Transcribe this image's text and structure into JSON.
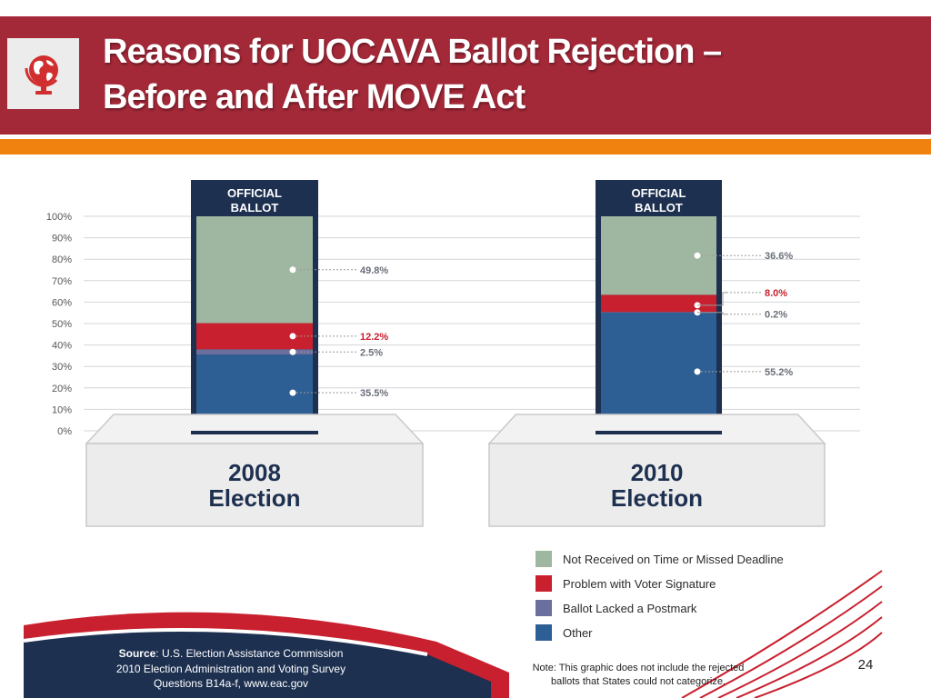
{
  "header": {
    "title_line1": "Reasons for UOCAVA Ballot Rejection –",
    "title_line2": "Before and After MOVE Act",
    "logo_icon": "globe-icon"
  },
  "chart_data": {
    "type": "bar",
    "stacked": true,
    "categories": [
      "2008 Election",
      "2010 Election"
    ],
    "category_lines": [
      [
        "2008",
        "Election"
      ],
      [
        "2010",
        "Election"
      ]
    ],
    "bar_header": [
      "OFFICIAL",
      "BALLOT"
    ],
    "series": [
      {
        "name": "Other",
        "color": "#2e5f94",
        "values": [
          35.5,
          55.2
        ]
      },
      {
        "name": "Ballot Lacked a Postmark",
        "color": "#6b6f9e",
        "values": [
          2.5,
          0.2
        ]
      },
      {
        "name": "Problem with Voter Signature",
        "color": "#c8202e",
        "values": [
          12.2,
          8.0
        ]
      },
      {
        "name": "Not Received on Time or Missed Deadline",
        "color": "#9fb7a0",
        "values": [
          49.8,
          36.6
        ]
      }
    ],
    "legend_order": [
      3,
      2,
      1,
      0
    ],
    "legend_position": "bottom-right",
    "value_labels": [
      [
        "35.5%",
        "2.5%",
        "12.2%",
        "49.8%"
      ],
      [
        "55.2%",
        "0.2%",
        "8.0%",
        "36.6%"
      ]
    ],
    "yticks": [
      "0%",
      "10%",
      "20%",
      "30%",
      "40%",
      "50%",
      "60%",
      "70%",
      "80%",
      "90%",
      "100%"
    ],
    "ylim": [
      0,
      100
    ],
    "grid": true
  },
  "source": {
    "label": "Source",
    "text1": ": U.S. Election Assistance Commission",
    "text2": "2010 Election Administration and Voting Survey",
    "text3": "Questions B14a-f, www.eac.gov"
  },
  "note": {
    "line1": "Note: This graphic does not include the rejected",
    "line2": "ballots that States could not categorize."
  },
  "slide_number": "24",
  "colors": {
    "header_bg": "#a32838",
    "accent_orange": "#f0820f",
    "navy": "#1d3050"
  }
}
